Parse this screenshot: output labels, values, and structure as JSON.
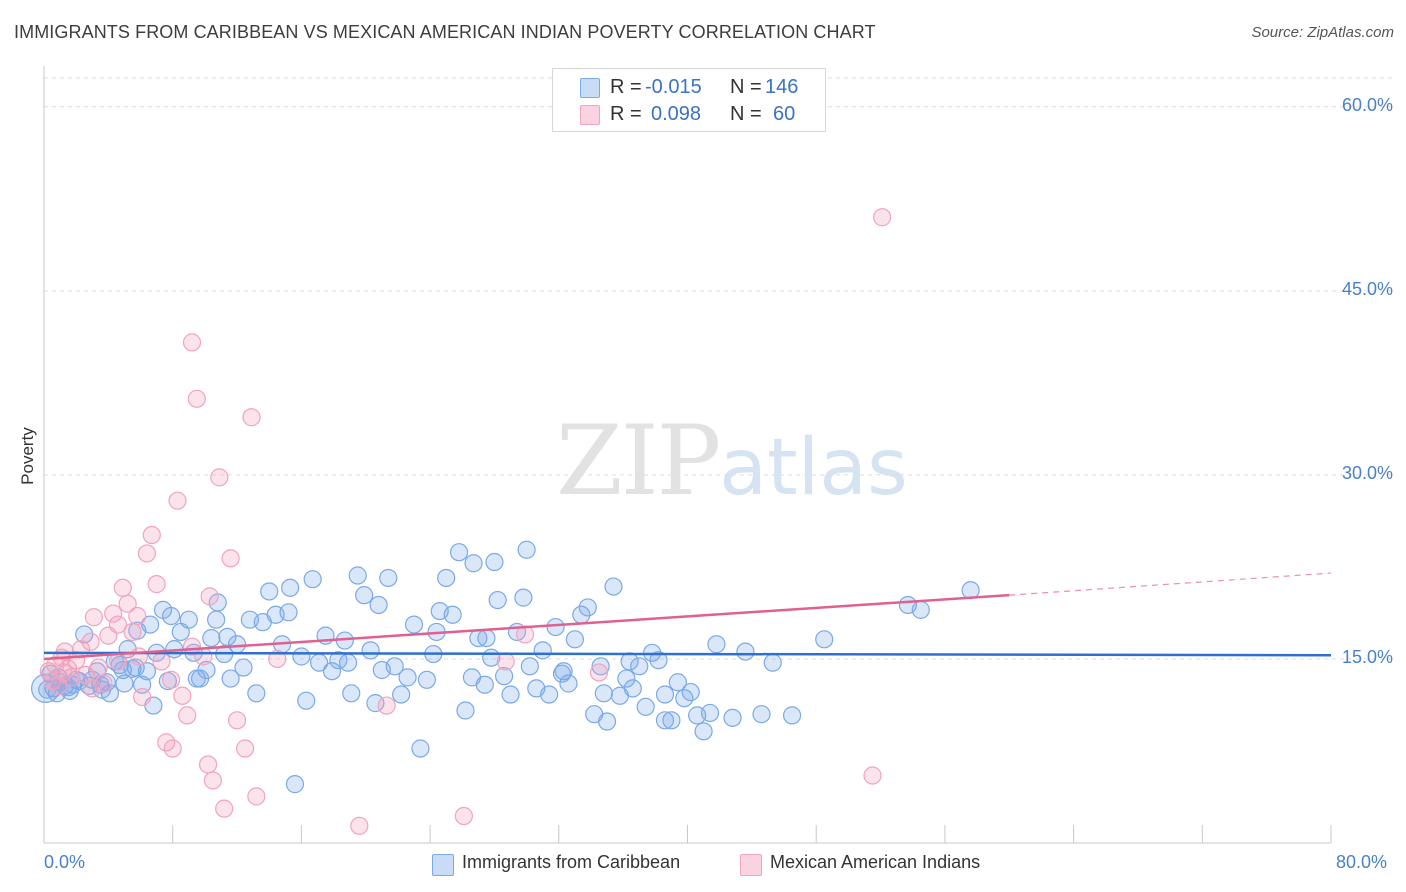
{
  "title": "IMMIGRANTS FROM CARIBBEAN VS MEXICAN AMERICAN INDIAN POVERTY CORRELATION CHART",
  "source": "Source: ZipAtlas.com",
  "watermark": {
    "zip": "ZIP",
    "atlas": "atlas"
  },
  "legend": {
    "rows": [
      {
        "r_label": "R =",
        "r_value": "-0.015",
        "n_label": "N =",
        "n_value": "146",
        "color": "#7aa9e8"
      },
      {
        "r_label": "R =",
        "r_value": "0.098",
        "n_label": "N =",
        "n_value": "60",
        "color": "#f2a3bd"
      }
    ]
  },
  "bottom_legend": {
    "items": [
      {
        "label": "Immigrants from Caribbean",
        "color": "#7aa9e8"
      },
      {
        "label": "Mexican American Indians",
        "color": "#f2a3bd"
      }
    ]
  },
  "chart_data": {
    "type": "scatter",
    "title": "IMMIGRANTS FROM CARIBBEAN VS MEXICAN AMERICAN INDIAN POVERTY CORRELATION CHART",
    "xlabel": "",
    "ylabel": "Poverty",
    "xlim": [
      0,
      80
    ],
    "ylim": [
      0,
      63
    ],
    "x_tick_labels": [
      {
        "value": 0,
        "label": "0.0%"
      },
      {
        "value": 80,
        "label": "80.0%"
      }
    ],
    "y_ticks": [
      {
        "value": 15,
        "label": "15.0%"
      },
      {
        "value": 30,
        "label": "30.0%"
      },
      {
        "value": 45,
        "label": "45.0%"
      },
      {
        "value": 60,
        "label": "60.0%"
      }
    ],
    "grid": true,
    "legend_position": "top-center",
    "series": [
      {
        "name": "Immigrants from Caribbean",
        "color": "#7aa9e8",
        "line_color": "#2f6fd0",
        "trend": {
          "x0": 0,
          "y0": 15.5,
          "x1": 80,
          "y1": 15.3
        },
        "points": [
          [
            0.2,
            12.5
          ],
          [
            0.4,
            13.8
          ],
          [
            0.6,
            12.6
          ],
          [
            0.8,
            12.2
          ],
          [
            1,
            13.1
          ],
          [
            1.3,
            12.8
          ],
          [
            1.6,
            12.4
          ],
          [
            1.8,
            12.9
          ],
          [
            2.2,
            13.2
          ],
          [
            2.5,
            17.0
          ],
          [
            2.8,
            12.8
          ],
          [
            3,
            13.3
          ],
          [
            3.3,
            14.0
          ],
          [
            3.6,
            12.5
          ],
          [
            3.9,
            13.1
          ],
          [
            4.1,
            12.2
          ],
          [
            4.4,
            14.8
          ],
          [
            4.7,
            14.5
          ],
          [
            5,
            13.0
          ],
          [
            5.2,
            15.8
          ],
          [
            5.5,
            14.2
          ],
          [
            5.8,
            17.3
          ],
          [
            6.1,
            12.9
          ],
          [
            6.4,
            14.0
          ],
          [
            6.6,
            17.8
          ],
          [
            7,
            15.5
          ],
          [
            7.4,
            19.0
          ],
          [
            7.7,
            13.2
          ],
          [
            7.9,
            18.5
          ],
          [
            8.1,
            15.8
          ],
          [
            8.5,
            17.2
          ],
          [
            9,
            18.2
          ],
          [
            9.3,
            15.5
          ],
          [
            9.7,
            13.4
          ],
          [
            10.1,
            14.1
          ],
          [
            10.4,
            16.7
          ],
          [
            10.8,
            19.6
          ],
          [
            11.2,
            15.4
          ],
          [
            11.6,
            13.4
          ],
          [
            12,
            16.2
          ],
          [
            12.4,
            14.3
          ],
          [
            12.8,
            18.2
          ],
          [
            13.2,
            12.2
          ],
          [
            13.6,
            18.0
          ],
          [
            14,
            20.5
          ],
          [
            14.4,
            18.6
          ],
          [
            14.8,
            16.2
          ],
          [
            15.2,
            18.8
          ],
          [
            15.6,
            4.8
          ],
          [
            16,
            15.2
          ],
          [
            16.3,
            11.6
          ],
          [
            16.7,
            21.5
          ],
          [
            17.1,
            14.7
          ],
          [
            17.5,
            16.9
          ],
          [
            17.9,
            14.0
          ],
          [
            18.3,
            14.9
          ],
          [
            18.7,
            16.5
          ],
          [
            19.1,
            12.2
          ],
          [
            19.5,
            21.8
          ],
          [
            19.9,
            20.2
          ],
          [
            20.3,
            15.7
          ],
          [
            20.6,
            11.4
          ],
          [
            21,
            14.1
          ],
          [
            21.4,
            21.6
          ],
          [
            21.8,
            14.4
          ],
          [
            22.2,
            12.1
          ],
          [
            22.6,
            13.5
          ],
          [
            23,
            17.8
          ],
          [
            23.4,
            7.7
          ],
          [
            23.8,
            13.3
          ],
          [
            24.2,
            15.4
          ],
          [
            24.6,
            18.9
          ],
          [
            25,
            21.6
          ],
          [
            25.4,
            18.6
          ],
          [
            25.8,
            23.7
          ],
          [
            26.2,
            10.8
          ],
          [
            26.6,
            13.5
          ],
          [
            27,
            16.7
          ],
          [
            27.4,
            12.9
          ],
          [
            27.8,
            15.1
          ],
          [
            28.2,
            19.8
          ],
          [
            28.6,
            13.6
          ],
          [
            29,
            12.1
          ],
          [
            29.4,
            17.2
          ],
          [
            29.8,
            20.0
          ],
          [
            30.2,
            14.4
          ],
          [
            30.6,
            12.6
          ],
          [
            31,
            15.7
          ],
          [
            31.4,
            12.1
          ],
          [
            31.8,
            17.6
          ],
          [
            32.2,
            13.8
          ],
          [
            32.6,
            13.0
          ],
          [
            33,
            16.6
          ],
          [
            33.4,
            18.6
          ],
          [
            33.8,
            19.2
          ],
          [
            34.2,
            10.5
          ],
          [
            34.6,
            14.4
          ],
          [
            35,
            9.9
          ],
          [
            35.4,
            20.9
          ],
          [
            35.8,
            12.0
          ],
          [
            36.2,
            13.4
          ],
          [
            36.6,
            12.6
          ],
          [
            37,
            14.4
          ],
          [
            37.4,
            11.1
          ],
          [
            37.8,
            15.5
          ],
          [
            38.2,
            14.9
          ],
          [
            38.6,
            12.1
          ],
          [
            39,
            10.0
          ],
          [
            39.4,
            13.1
          ],
          [
            39.8,
            11.8
          ],
          [
            40.2,
            12.3
          ],
          [
            40.6,
            10.4
          ],
          [
            41,
            9.1
          ],
          [
            41.4,
            10.6
          ],
          [
            41.8,
            16.2
          ],
          [
            42.8,
            10.2
          ],
          [
            43.6,
            15.6
          ],
          [
            44.6,
            10.5
          ],
          [
            45.3,
            14.7
          ],
          [
            46.5,
            10.4
          ],
          [
            48.5,
            16.6
          ],
          [
            53.7,
            19.4
          ],
          [
            54.5,
            19.0
          ],
          [
            57.6,
            20.6
          ],
          [
            30,
            23.9
          ],
          [
            28,
            22.9
          ],
          [
            26.7,
            22.8
          ],
          [
            34.8,
            12.2
          ],
          [
            6.8,
            11.2
          ],
          [
            10.7,
            18.2
          ],
          [
            2.0,
            13.3
          ],
          [
            5.7,
            14.3
          ],
          [
            9.5,
            13.4
          ],
          [
            11.4,
            16.8
          ],
          [
            15.3,
            20.8
          ],
          [
            18.9,
            14.7
          ],
          [
            20.8,
            19.4
          ],
          [
            24.4,
            17.2
          ],
          [
            27.5,
            16.7
          ],
          [
            32.3,
            14.0
          ],
          [
            36.4,
            14.8
          ],
          [
            38.6,
            10.0
          ],
          [
            0.9,
            13.5
          ],
          [
            1.5,
            12.7
          ],
          [
            3.5,
            12.9
          ],
          [
            4.9,
            14.1
          ]
        ]
      },
      {
        "name": "Mexican American Indians",
        "color": "#f2a3bd",
        "line_color": "#e0608f",
        "trend": {
          "x0": 0,
          "y0": 15.0,
          "x1": 60,
          "y1": 20.2
        },
        "trend_dashed": {
          "x0": 60,
          "y0": 20.2,
          "x1": 80,
          "y1": 22.0
        },
        "points": [
          [
            0.3,
            14.0
          ],
          [
            0.5,
            13.2
          ],
          [
            0.7,
            14.5
          ],
          [
            0.9,
            12.8
          ],
          [
            1.1,
            15.1
          ],
          [
            1.3,
            15.6
          ],
          [
            1.5,
            14.2
          ],
          [
            1.7,
            13.5
          ],
          [
            2,
            14.9
          ],
          [
            2.3,
            15.8
          ],
          [
            2.6,
            13.7
          ],
          [
            2.9,
            16.4
          ],
          [
            3.1,
            18.4
          ],
          [
            3.4,
            14.3
          ],
          [
            3.7,
            13.0
          ],
          [
            4,
            16.9
          ],
          [
            4.3,
            18.7
          ],
          [
            4.6,
            17.8
          ],
          [
            4.9,
            20.8
          ],
          [
            5.2,
            19.5
          ],
          [
            5.5,
            17.2
          ],
          [
            5.8,
            18.5
          ],
          [
            6.1,
            11.9
          ],
          [
            6.4,
            23.6
          ],
          [
            6.7,
            25.1
          ],
          [
            7,
            21.1
          ],
          [
            7.3,
            14.8
          ],
          [
            7.6,
            8.2
          ],
          [
            8,
            7.7
          ],
          [
            8.3,
            27.9
          ],
          [
            8.6,
            12.0
          ],
          [
            8.9,
            10.4
          ],
          [
            9.2,
            40.8
          ],
          [
            9.5,
            36.2
          ],
          [
            9.9,
            15.2
          ],
          [
            10.2,
            6.4
          ],
          [
            10.5,
            5.1
          ],
          [
            10.9,
            29.8
          ],
          [
            11.2,
            2.8
          ],
          [
            11.6,
            23.2
          ],
          [
            12,
            10.0
          ],
          [
            12.5,
            7.7
          ],
          [
            12.9,
            34.7
          ],
          [
            13.2,
            3.8
          ],
          [
            14.5,
            15.0
          ],
          [
            19.6,
            1.4
          ],
          [
            21.3,
            11.2
          ],
          [
            26.1,
            2.2
          ],
          [
            28.7,
            14.8
          ],
          [
            29.9,
            17.0
          ],
          [
            34.5,
            13.9
          ],
          [
            51.5,
            5.5
          ],
          [
            52.1,
            51.0
          ],
          [
            3.0,
            12.6
          ],
          [
            4.6,
            14.8
          ],
          [
            5.9,
            15.2
          ],
          [
            7.9,
            13.3
          ],
          [
            9.2,
            16.0
          ],
          [
            10.3,
            20.1
          ],
          [
            1.2,
            13.9
          ]
        ]
      }
    ]
  }
}
